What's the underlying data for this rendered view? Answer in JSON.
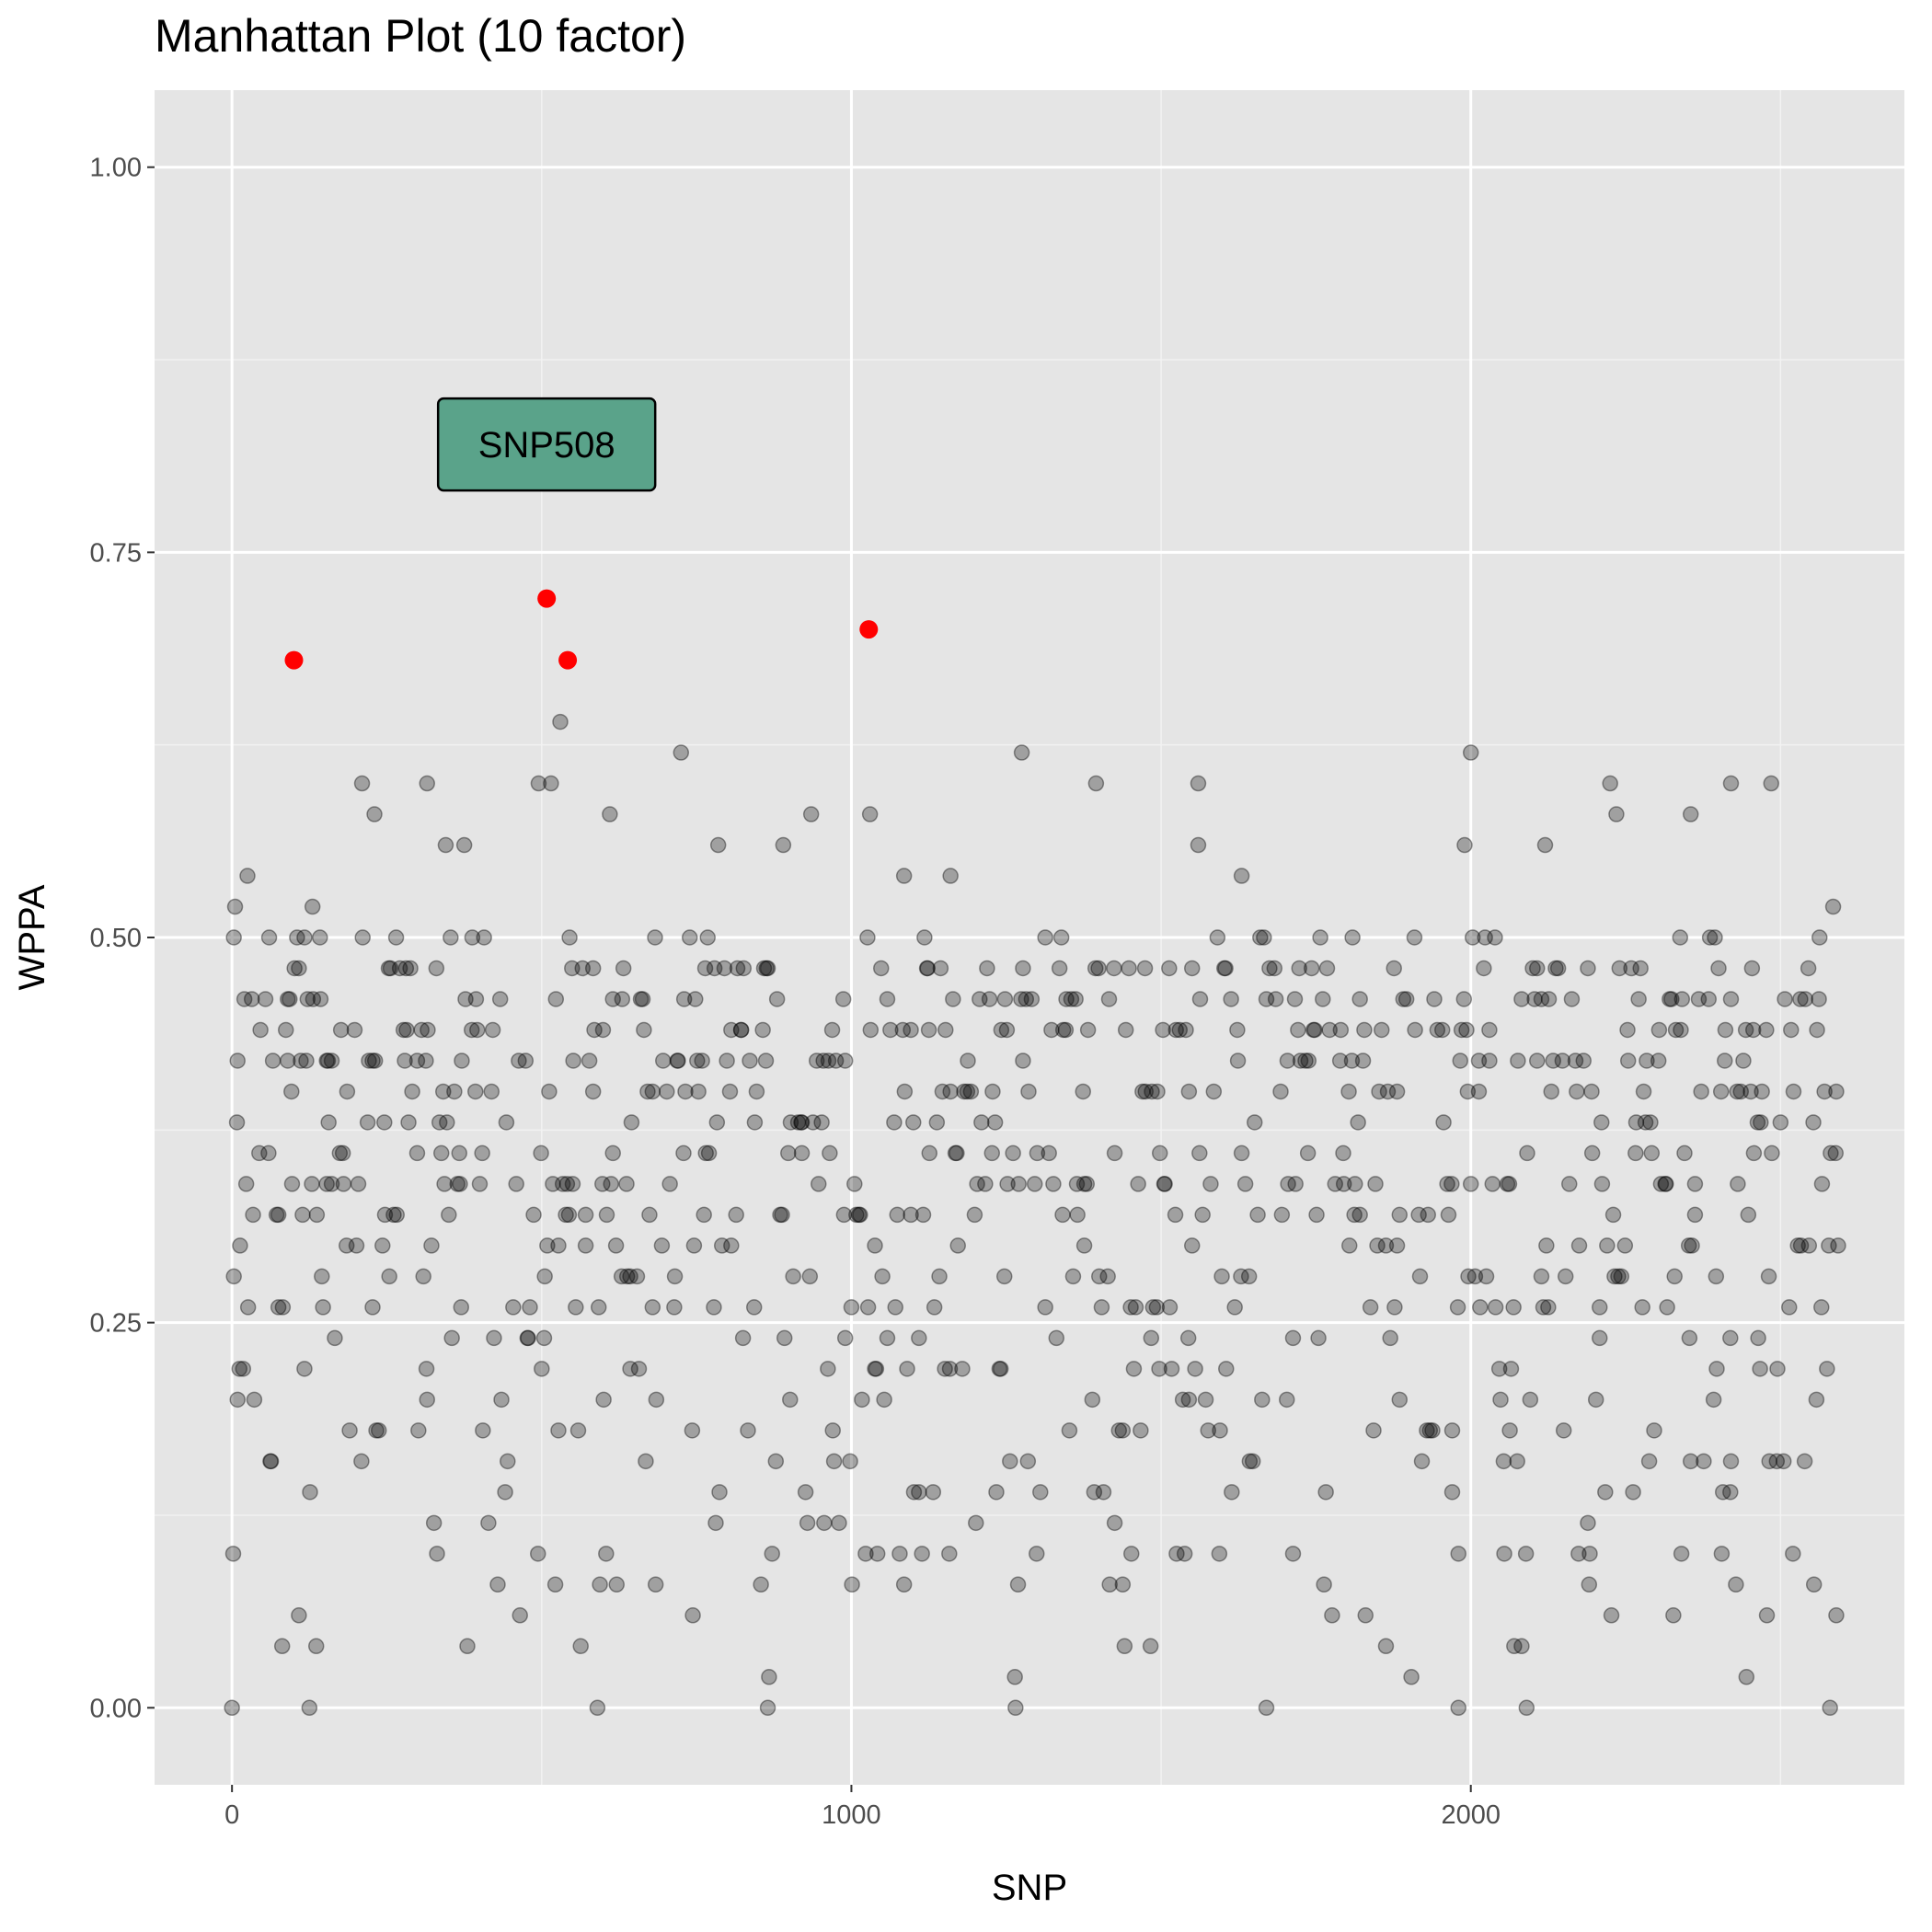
{
  "chart_data": {
    "type": "scatter",
    "title": "Manhattan Plot (10 factor)",
    "xlabel": "SNP",
    "ylabel": "WPPA",
    "xlim": [
      -125,
      2700
    ],
    "ylim": [
      -0.05,
      1.05
    ],
    "x_ticks": [
      0,
      1000,
      2000
    ],
    "x_tick_labels": [
      "0",
      "1000",
      "2000"
    ],
    "y_ticks": [
      0,
      0.25,
      0.5,
      0.75,
      1.0
    ],
    "y_tick_labels": [
      "0.00",
      "0.25",
      "0.50",
      "0.75",
      "1.00"
    ],
    "grid": true,
    "legend": "none",
    "highlighted_points": [
      {
        "x": 100,
        "y": 0.68
      },
      {
        "x": 508,
        "y": 0.72
      },
      {
        "x": 542,
        "y": 0.68
      },
      {
        "x": 1028,
        "y": 0.7
      }
    ],
    "highlight_color": "#ff0000",
    "point_color": "#000000",
    "point_opacity": 0.3,
    "annotation": {
      "text": "SNP508",
      "x": 508,
      "y": 0.82,
      "fill": "#5aa38a"
    },
    "points_sample": [
      {
        "x": 5,
        "y": 0.52
      },
      {
        "x": 25,
        "y": 0.54
      },
      {
        "x": 8,
        "y": 0.38
      },
      {
        "x": 2,
        "y": 0.1
      },
      {
        "x": 0,
        "y": 0.0
      },
      {
        "x": 60,
        "y": 0.5
      },
      {
        "x": 90,
        "y": 0.46
      },
      {
        "x": 105,
        "y": 0.5
      },
      {
        "x": 130,
        "y": 0.52
      },
      {
        "x": 210,
        "y": 0.6
      },
      {
        "x": 230,
        "y": 0.58
      },
      {
        "x": 315,
        "y": 0.6
      },
      {
        "x": 345,
        "y": 0.56
      },
      {
        "x": 375,
        "y": 0.56
      },
      {
        "x": 495,
        "y": 0.6
      },
      {
        "x": 515,
        "y": 0.6
      },
      {
        "x": 530,
        "y": 0.64
      },
      {
        "x": 610,
        "y": 0.58
      },
      {
        "x": 725,
        "y": 0.62
      },
      {
        "x": 785,
        "y": 0.56
      },
      {
        "x": 890,
        "y": 0.56
      },
      {
        "x": 935,
        "y": 0.58
      },
      {
        "x": 1030,
        "y": 0.58
      },
      {
        "x": 1085,
        "y": 0.54
      },
      {
        "x": 1160,
        "y": 0.54
      },
      {
        "x": 1275,
        "y": 0.62
      },
      {
        "x": 1395,
        "y": 0.6
      },
      {
        "x": 1560,
        "y": 0.6
      },
      {
        "x": 1560,
        "y": 0.56
      },
      {
        "x": 1630,
        "y": 0.54
      },
      {
        "x": 2000,
        "y": 0.62
      },
      {
        "x": 1990,
        "y": 0.56
      },
      {
        "x": 2120,
        "y": 0.56
      },
      {
        "x": 2225,
        "y": 0.6
      },
      {
        "x": 2235,
        "y": 0.58
      },
      {
        "x": 2355,
        "y": 0.58
      },
      {
        "x": 2420,
        "y": 0.6
      },
      {
        "x": 2485,
        "y": 0.6
      },
      {
        "x": 2585,
        "y": 0.52
      },
      {
        "x": 2590,
        "y": 0.4
      },
      {
        "x": 2580,
        "y": 0.0
      },
      {
        "x": 1670,
        "y": 0.0
      },
      {
        "x": 1980,
        "y": 0.0
      },
      {
        "x": 2090,
        "y": 0.0
      },
      {
        "x": 125,
        "y": 0.0
      },
      {
        "x": 590,
        "y": 0.0
      },
      {
        "x": 865,
        "y": 0.0
      },
      {
        "x": 1265,
        "y": 0.0
      }
    ]
  }
}
